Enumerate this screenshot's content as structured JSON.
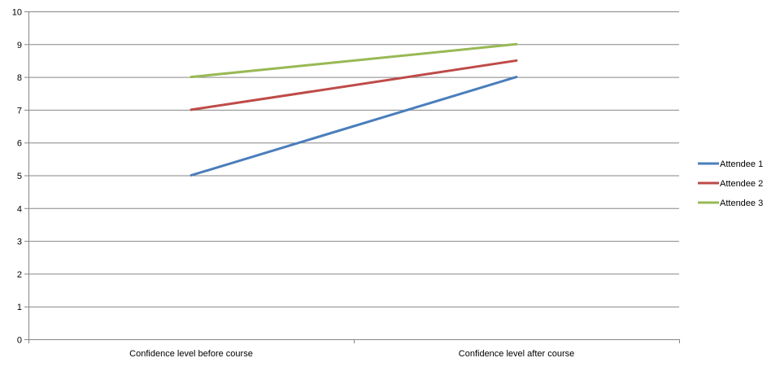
{
  "chart_data": {
    "type": "line",
    "categories": [
      "Confidence level before course",
      "Confidence level after course"
    ],
    "series": [
      {
        "name": "Attendee 1",
        "values": [
          5,
          8
        ],
        "color": "#4a7ebb"
      },
      {
        "name": "Attendee 2",
        "values": [
          7,
          8.5
        ],
        "color": "#be4b48"
      },
      {
        "name": "Attendee 3",
        "values": [
          8,
          9
        ],
        "color": "#98b954"
      }
    ],
    "ylim": [
      0,
      10
    ],
    "yticks": [
      0,
      1,
      2,
      3,
      4,
      5,
      6,
      7,
      8,
      9,
      10
    ],
    "grid": true,
    "legend": "right",
    "gridline_color": "#868686",
    "axis_color": "#868686"
  }
}
